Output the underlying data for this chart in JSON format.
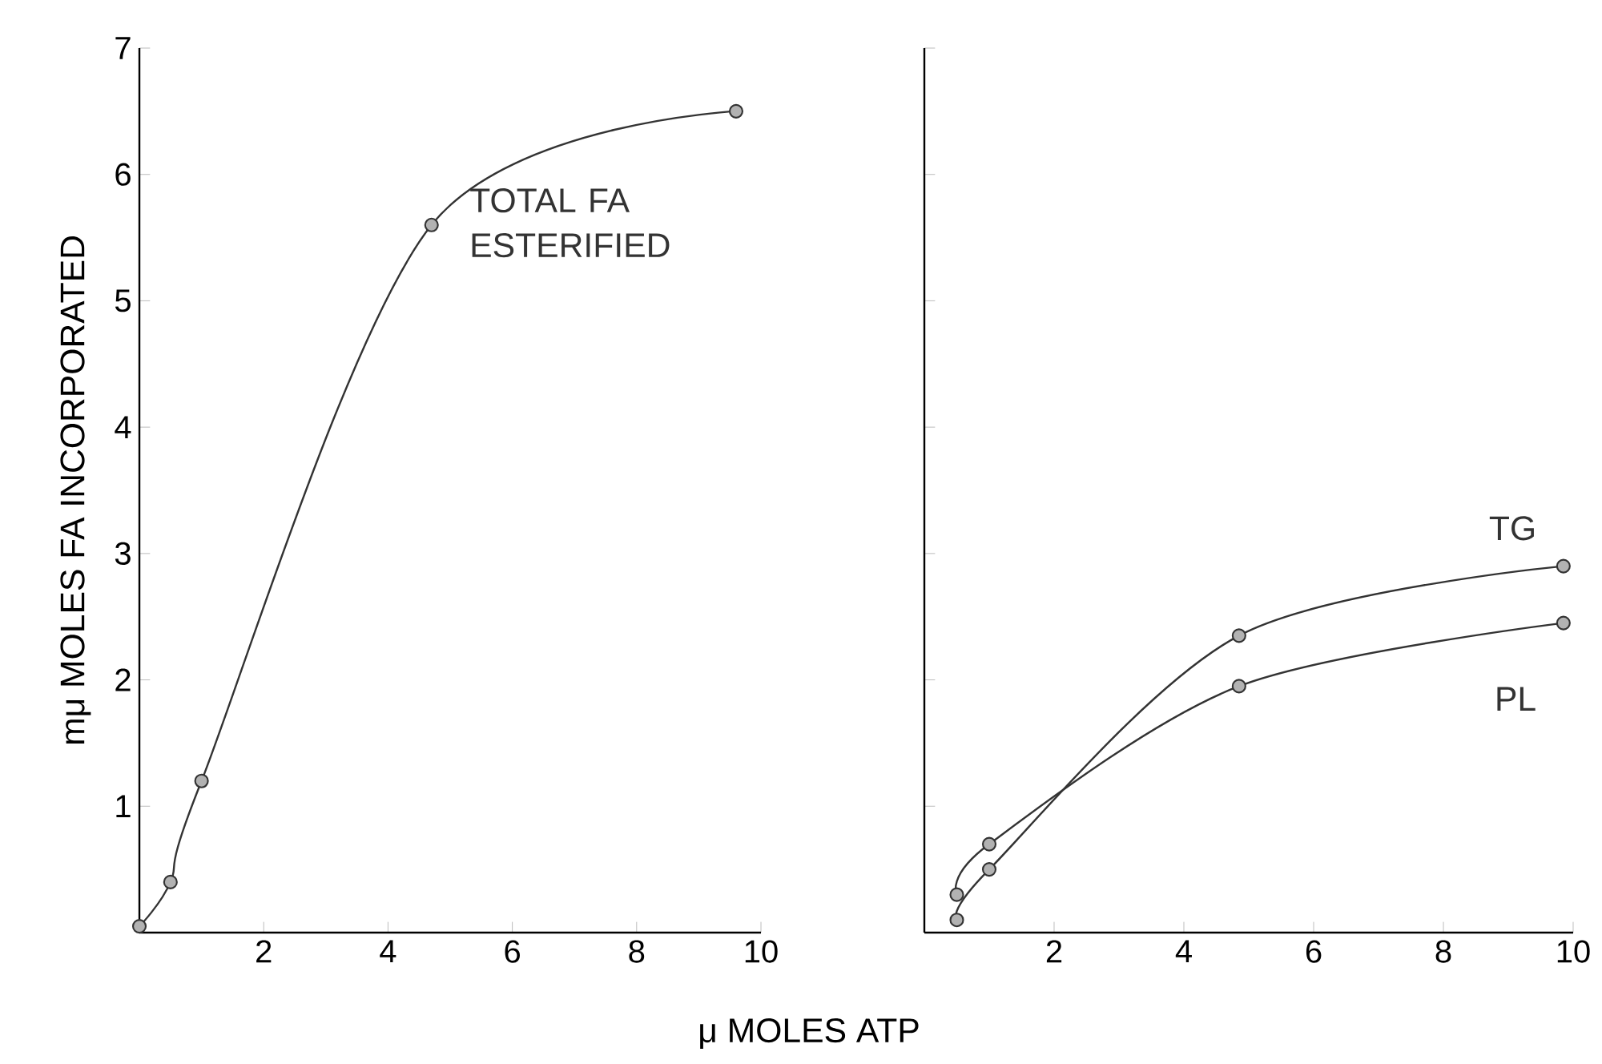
{
  "chart_data": [
    {
      "type": "line",
      "ylabel": "mμ MOLES FA INCORPORATED",
      "xlabel": "μ MOLES ATP",
      "xlim": [
        0,
        10
      ],
      "xticks": [
        2,
        4,
        6,
        8,
        10
      ],
      "ylim": [
        0,
        7
      ],
      "yticks": [
        1,
        2,
        3,
        4,
        5,
        6,
        7
      ],
      "marker": "circle",
      "line_style": "solid",
      "grid": false,
      "legend": false,
      "series": [
        {
          "name": "TOTAL FA ESTERIFIED",
          "color": "#333333",
          "x": [
            0,
            0.5,
            1,
            4.7,
            9.6
          ],
          "values": [
            0.05,
            0.4,
            1.2,
            5.6,
            6.5
          ]
        }
      ]
    },
    {
      "type": "line",
      "xlim": [
        0,
        10
      ],
      "xticks": [
        2,
        4,
        6,
        8,
        10
      ],
      "ylim": [
        0,
        7
      ],
      "yticks": [
        1,
        2,
        3,
        4,
        5,
        6,
        7
      ],
      "tick_labels": "x",
      "marker": "circle",
      "line_style": "solid",
      "grid": false,
      "legend": false,
      "series": [
        {
          "name": "TG",
          "color": "#333333",
          "x": [
            0.5,
            1,
            4.85,
            9.85
          ],
          "values": [
            0.1,
            0.5,
            2.35,
            2.9
          ]
        },
        {
          "name": "PL",
          "color": "#333333",
          "x": [
            0.5,
            1,
            4.85,
            9.85
          ],
          "values": [
            0.3,
            0.7,
            1.95,
            2.45
          ]
        }
      ]
    }
  ]
}
